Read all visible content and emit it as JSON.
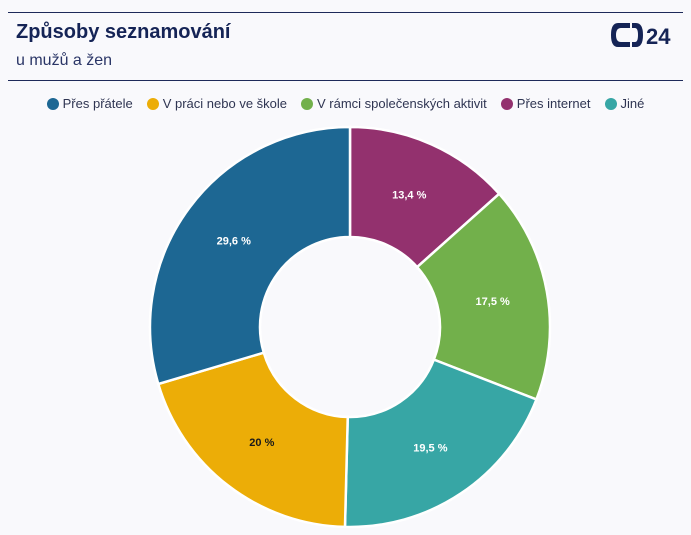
{
  "header": {
    "title": "Způsoby seznamování",
    "subtitle": "u mužů a žen",
    "logo_text": "24"
  },
  "chart_data": {
    "type": "pie",
    "donut": true,
    "legend_position": "top-center",
    "slices": [
      {
        "name": "Přes internet",
        "value": 13.4,
        "label": "13,4 %",
        "color": "#93316e",
        "label_color": "#ffffff"
      },
      {
        "name": "V rámci společenských aktivit",
        "value": 17.5,
        "label": "17,5 %",
        "color": "#72b04b",
        "label_color": "#ffffff"
      },
      {
        "name": "Jiné",
        "value": 19.5,
        "label": "19,5 %",
        "color": "#37a6a5",
        "label_color": "#ffffff"
      },
      {
        "name": "V práci nebo ve škole",
        "value": 20,
        "label": "20 %",
        "color": "#ecad07",
        "label_color": "#1a1a1a"
      },
      {
        "name": "Přes přátele",
        "value": 29.6,
        "label": "29,6 %",
        "color": "#1d6793",
        "label_color": "#ffffff"
      }
    ],
    "legend": [
      {
        "name": "Přes přátele",
        "color": "#1d6793"
      },
      {
        "name": "V práci nebo ve škole",
        "color": "#ecad07"
      },
      {
        "name": "V rámci společenských aktivit",
        "color": "#72b04b"
      },
      {
        "name": "Přes internet",
        "color": "#93316e"
      },
      {
        "name": "Jiné",
        "color": "#37a6a5"
      }
    ]
  }
}
